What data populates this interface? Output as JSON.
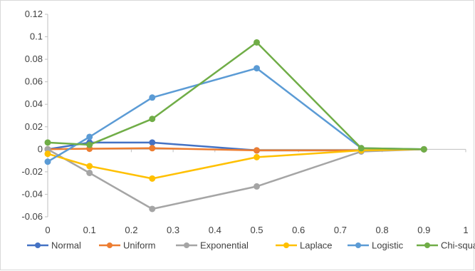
{
  "chart_data": {
    "type": "line",
    "x": [
      0,
      0.1,
      0.25,
      0.5,
      0.75,
      0.9
    ],
    "xlim": [
      0,
      1
    ],
    "xticks": [
      0,
      0.1,
      0.2,
      0.3,
      0.4,
      0.5,
      0.6,
      0.7,
      0.8,
      0.9,
      1
    ],
    "ylim": [
      -0.06,
      0.12
    ],
    "yticks": [
      -0.06,
      -0.04,
      -0.02,
      0,
      0.02,
      0.04,
      0.06,
      0.08,
      0.1,
      0.12
    ],
    "grid": false,
    "legend_position": "bottom",
    "series": [
      {
        "name": "Normal",
        "color": "#4472C4",
        "values": [
          0,
          0.006,
          0.006,
          -0.001,
          -0.001,
          0
        ]
      },
      {
        "name": "Uniform",
        "color": "#ED7D31",
        "values": [
          0,
          0.0005,
          0.001,
          -0.001,
          -0.001,
          0
        ]
      },
      {
        "name": "Exponential",
        "color": "#A5A5A5",
        "values": [
          0,
          -0.021,
          -0.053,
          -0.033,
          -0.002,
          0
        ]
      },
      {
        "name": "Laplace",
        "color": "#FFC000",
        "values": [
          -0.004,
          -0.015,
          -0.026,
          -0.007,
          -0.001,
          0
        ]
      },
      {
        "name": "Logistic",
        "color": "#5B9BD5",
        "values": [
          -0.011,
          0.011,
          0.046,
          0.072,
          0.001,
          0
        ]
      },
      {
        "name": "Chi-square",
        "color": "#70AD47",
        "values": [
          0.006,
          0.004,
          0.027,
          0.095,
          0.001,
          0
        ]
      }
    ]
  }
}
